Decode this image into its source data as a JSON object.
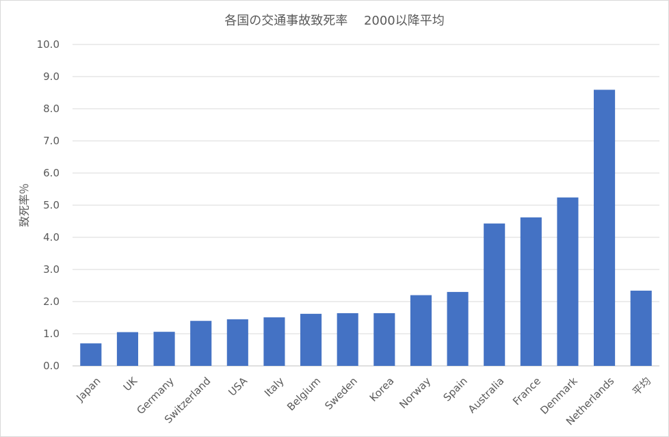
{
  "chart_data": {
    "type": "bar",
    "title": "各国の交通事故致死率　 2000以降平均",
    "xlabel": "",
    "ylabel": "致死率％",
    "ylim": [
      0,
      10
    ],
    "yticks": [
      "0.0",
      "1.0",
      "2.0",
      "3.0",
      "4.0",
      "5.0",
      "6.0",
      "7.0",
      "8.0",
      "9.0",
      "10.0"
    ],
    "grid": true,
    "legend": "none",
    "categories": [
      "Japan",
      "UK",
      "Germany",
      "Switzerland",
      "USA",
      "Italy",
      "Belgium",
      "Sweden",
      "Korea",
      "Norway",
      "Spain",
      "Australia",
      "France",
      "Denmark",
      "Netherlands",
      "平均"
    ],
    "values": [
      0.7,
      1.05,
      1.06,
      1.4,
      1.45,
      1.51,
      1.62,
      1.64,
      1.64,
      2.2,
      2.3,
      4.43,
      4.62,
      5.24,
      8.59,
      2.34
    ],
    "bar_color": "#4472C4"
  }
}
